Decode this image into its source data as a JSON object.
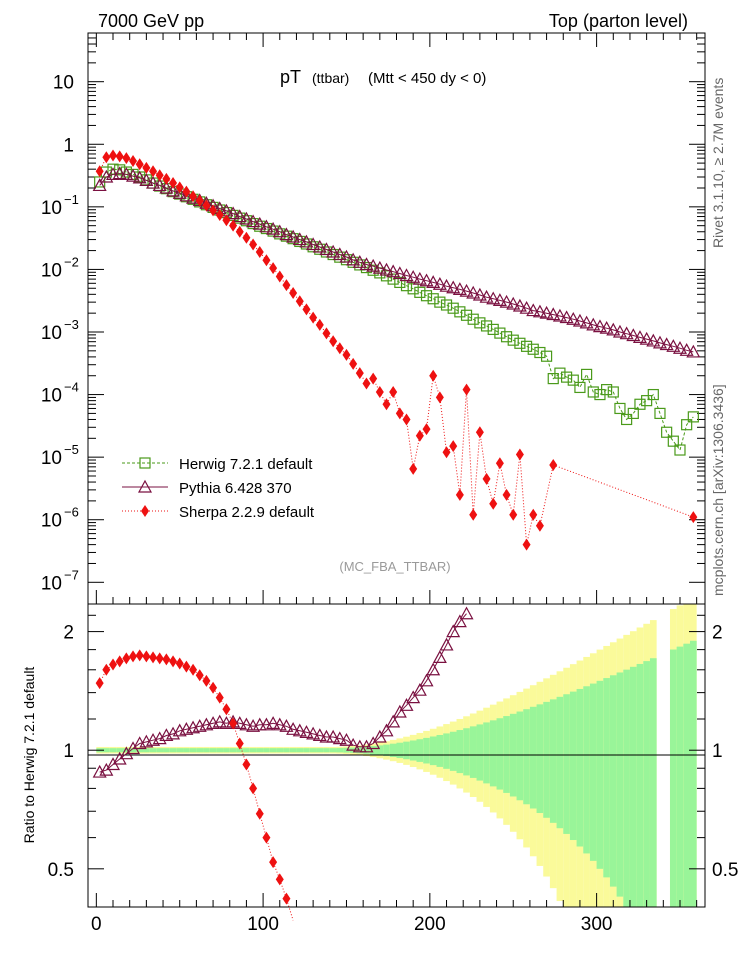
{
  "header": {
    "left": "7000 GeV pp",
    "right": "Top (parton level)"
  },
  "title": {
    "main": "pT",
    "sub": "(ttbar)",
    "cut": "(Mtt < 450 dy < 0)"
  },
  "side_labels": {
    "rivet": "Rivet 3.1.10, ≥ 2.7M events",
    "mcplots": "mcplots.cern.ch [arXiv:1306.3436]"
  },
  "watermark": "(MC_FBA_TTBAR)",
  "legend": [
    {
      "name": "Herwig 7.2.1 default",
      "color": "#4a9a1a"
    },
    {
      "name": "Pythia 6.428 370",
      "color": "#7a1040"
    },
    {
      "name": "Sherpa 2.2.9 default",
      "color": "#ee1111"
    }
  ],
  "ratio_ylabel": "Ratio to Herwig 7.2.1 default",
  "colors": {
    "herwig": "#4a9a1a",
    "pythia": "#7a1040",
    "sherpa": "#ee1111",
    "band_inner": "#99f599",
    "band_outer": "#fafa9a"
  },
  "chart_data": [
    {
      "type": "line",
      "title": "pT (ttbar) (Mtt < 450 dy < 0)",
      "xlabel": "",
      "ylabel": "",
      "xlim": [
        -5,
        365
      ],
      "ylim": [
        4.5e-08,
        60
      ],
      "yscale": "log",
      "yticks": [
        "10^-7",
        "10^-6",
        "10^-5",
        "10^-4",
        "10^-3",
        "10^-2",
        "10^-1",
        "1",
        "10"
      ],
      "series": [
        {
          "name": "Herwig 7.2.1 default",
          "x": [
            2,
            6,
            10,
            14,
            18,
            22,
            26,
            30,
            34,
            38,
            42,
            46,
            50,
            54,
            58,
            62,
            66,
            70,
            74,
            78,
            82,
            86,
            90,
            94,
            98,
            102,
            106,
            110,
            114,
            118,
            122,
            126,
            130,
            134,
            138,
            142,
            146,
            150,
            154,
            158,
            162,
            166,
            170,
            174,
            178,
            182,
            186,
            190,
            194,
            198,
            202,
            206,
            210,
            214,
            218,
            222,
            226,
            230,
            234,
            238,
            242,
            246,
            250,
            254,
            258,
            262,
            266,
            270,
            274,
            278,
            282,
            286,
            290,
            294,
            298,
            302,
            306,
            310,
            314,
            318,
            322,
            326,
            330,
            334,
            338,
            342,
            346,
            350,
            354,
            358
          ],
          "values": [
            0.25,
            0.36,
            0.4,
            0.39,
            0.36,
            0.33,
            0.3,
            0.27,
            0.24,
            0.215,
            0.195,
            0.175,
            0.16,
            0.145,
            0.132,
            0.12,
            0.108,
            0.098,
            0.089,
            0.081,
            0.073,
            0.066,
            0.06,
            0.054,
            0.049,
            0.045,
            0.041,
            0.037,
            0.034,
            0.031,
            0.028,
            0.0255,
            0.023,
            0.021,
            0.019,
            0.0173,
            0.0157,
            0.0143,
            0.013,
            0.0118,
            0.0107,
            0.0097,
            0.0088,
            0.0079,
            0.007,
            0.0062,
            0.0055,
            0.0049,
            0.0043,
            0.0038,
            0.0034,
            0.003,
            0.0027,
            0.0024,
            0.0021,
            0.00185,
            0.0016,
            0.0014,
            0.00125,
            0.0011,
            0.00096,
            0.00084,
            0.00074,
            0.00066,
            0.00059,
            0.00053,
            0.00047,
            0.00041,
            0.00018,
            0.00022,
            0.00019,
            0.00017,
            0.00013,
            0.00021,
            0.00011,
            0.0001,
            0.00012,
            0.00011,
            6e-05,
            4e-05,
            5e-05,
            7e-05,
            8e-05,
            0.0001,
            5e-05,
            2.5e-05,
            1.8e-05,
            1.3e-05,
            3.3e-05,
            4.4e-05
          ]
        },
        {
          "name": "Pythia 6.428 370",
          "x": [
            2,
            6,
            10,
            14,
            18,
            22,
            26,
            30,
            34,
            38,
            42,
            46,
            50,
            54,
            58,
            62,
            66,
            70,
            74,
            78,
            82,
            86,
            90,
            94,
            98,
            102,
            106,
            110,
            114,
            118,
            122,
            126,
            130,
            134,
            138,
            142,
            146,
            150,
            154,
            158,
            162,
            166,
            170,
            174,
            178,
            182,
            186,
            190,
            194,
            198,
            202,
            206,
            210,
            214,
            218,
            222,
            226,
            230,
            234,
            238,
            242,
            246,
            250,
            254,
            258,
            262,
            266,
            270,
            274,
            278,
            282,
            286,
            290,
            294,
            298,
            302,
            306,
            310,
            314,
            318,
            322,
            326,
            330,
            334,
            338,
            342,
            346,
            350,
            354,
            358
          ],
          "values": [
            0.22,
            0.3,
            0.33,
            0.34,
            0.33,
            0.31,
            0.29,
            0.265,
            0.24,
            0.22,
            0.2,
            0.18,
            0.165,
            0.15,
            0.138,
            0.126,
            0.114,
            0.104,
            0.094,
            0.086,
            0.078,
            0.07,
            0.064,
            0.058,
            0.053,
            0.048,
            0.044,
            0.04,
            0.036,
            0.033,
            0.03,
            0.0275,
            0.025,
            0.0228,
            0.0208,
            0.019,
            0.0173,
            0.0158,
            0.0142,
            0.013,
            0.012,
            0.0113,
            0.0105,
            0.0098,
            0.0092,
            0.0086,
            0.008,
            0.0075,
            0.007,
            0.0066,
            0.0062,
            0.0058,
            0.0054,
            0.0051,
            0.0048,
            0.0045,
            0.0042,
            0.0039,
            0.0036,
            0.0034,
            0.0032,
            0.003,
            0.0028,
            0.0026,
            0.0024,
            0.0022,
            0.0021,
            0.002,
            0.0019,
            0.0018,
            0.0017,
            0.0016,
            0.0015,
            0.0014,
            0.0013,
            0.00122,
            0.00115,
            0.00108,
            0.001,
            0.00094,
            0.00088,
            0.00082,
            0.00077,
            0.00072,
            0.00067,
            0.00063,
            0.00059,
            0.00055,
            0.00051,
            0.00048
          ]
        },
        {
          "name": "Sherpa 2.2.9 default",
          "x": [
            2,
            6,
            10,
            14,
            18,
            22,
            26,
            30,
            34,
            38,
            42,
            46,
            50,
            54,
            58,
            62,
            66,
            70,
            74,
            78,
            82,
            86,
            90,
            94,
            98,
            102,
            106,
            110,
            114,
            118,
            122,
            126,
            130,
            134,
            138,
            142,
            146,
            150,
            154,
            158,
            162,
            166,
            170,
            174,
            178,
            182,
            186,
            190,
            194,
            198,
            202,
            206,
            210,
            214,
            218,
            222,
            226,
            230,
            234,
            238,
            242,
            246,
            250,
            254,
            258,
            262,
            266,
            274,
            358
          ],
          "values": [
            0.37,
            0.62,
            0.66,
            0.64,
            0.6,
            0.54,
            0.48,
            0.42,
            0.37,
            0.32,
            0.28,
            0.24,
            0.205,
            0.175,
            0.148,
            0.125,
            0.105,
            0.088,
            0.074,
            0.061,
            0.05,
            0.04,
            0.032,
            0.025,
            0.019,
            0.014,
            0.0105,
            0.0077,
            0.0056,
            0.0042,
            0.0031,
            0.0023,
            0.0017,
            0.0013,
            0.00095,
            0.00071,
            0.00055,
            0.00043,
            0.00031,
            0.00022,
            0.00015,
            0.00018,
            0.00011,
            7e-05,
            0.00011,
            5e-05,
            4e-05,
            6.5e-06,
            2.2e-05,
            2.8e-05,
            0.0002,
            9e-05,
            1.2e-05,
            1.5e-05,
            2.5e-06,
            0.00012,
            1.2e-06,
            2.5e-05,
            4.5e-06,
            1.8e-06,
            8e-06,
            2.5e-06,
            1.2e-06,
            1.1e-05,
            4e-07,
            1.2e-06,
            8e-07,
            7.5e-06,
            1.1e-06
          ]
        }
      ]
    },
    {
      "type": "line",
      "title": "",
      "xlabel": "",
      "ylabel": "Ratio to Herwig 7.2.1 default",
      "xlim": [
        -5,
        365
      ],
      "ylim": [
        0.4,
        2.35
      ],
      "yscale": "log",
      "xticks": [
        0,
        100,
        200,
        300
      ],
      "yticks": [
        0.5,
        1,
        2
      ],
      "series": [
        {
          "name": "Pythia 6.428 370",
          "x": [
            2,
            6,
            10,
            14,
            18,
            22,
            26,
            30,
            34,
            38,
            42,
            46,
            50,
            54,
            58,
            62,
            66,
            70,
            74,
            78,
            82,
            86,
            90,
            94,
            98,
            102,
            106,
            110,
            114,
            118,
            122,
            126,
            130,
            134,
            138,
            142,
            146,
            150,
            154,
            158,
            162,
            166,
            170,
            174,
            178,
            182,
            186,
            190,
            194,
            198,
            202,
            206,
            210,
            214,
            218,
            222
          ],
          "values": [
            0.88,
            0.89,
            0.92,
            0.95,
            0.98,
            1.01,
            1.04,
            1.05,
            1.06,
            1.07,
            1.09,
            1.1,
            1.12,
            1.13,
            1.14,
            1.15,
            1.16,
            1.17,
            1.18,
            1.17,
            1.18,
            1.17,
            1.16,
            1.15,
            1.16,
            1.16,
            1.17,
            1.16,
            1.15,
            1.13,
            1.12,
            1.11,
            1.1,
            1.09,
            1.08,
            1.08,
            1.07,
            1.06,
            1.03,
            1.02,
            1.02,
            1.04,
            1.08,
            1.12,
            1.18,
            1.25,
            1.3,
            1.36,
            1.42,
            1.5,
            1.6,
            1.72,
            1.85,
            2.0,
            2.12,
            2.22
          ]
        },
        {
          "name": "Sherpa 2.2.9 default",
          "x": [
            2,
            6,
            10,
            14,
            18,
            22,
            26,
            30,
            34,
            38,
            42,
            46,
            50,
            54,
            58,
            62,
            66,
            70,
            74,
            78,
            82,
            86,
            90,
            94,
            98,
            102,
            106,
            110,
            114,
            118
          ],
          "values": [
            1.48,
            1.6,
            1.65,
            1.68,
            1.71,
            1.73,
            1.74,
            1.73,
            1.72,
            1.71,
            1.7,
            1.68,
            1.66,
            1.63,
            1.6,
            1.55,
            1.5,
            1.44,
            1.36,
            1.27,
            1.17,
            1.04,
            0.92,
            0.8,
            0.69,
            0.6,
            0.52,
            0.47,
            0.42,
            0.37
          ]
        }
      ]
    }
  ]
}
